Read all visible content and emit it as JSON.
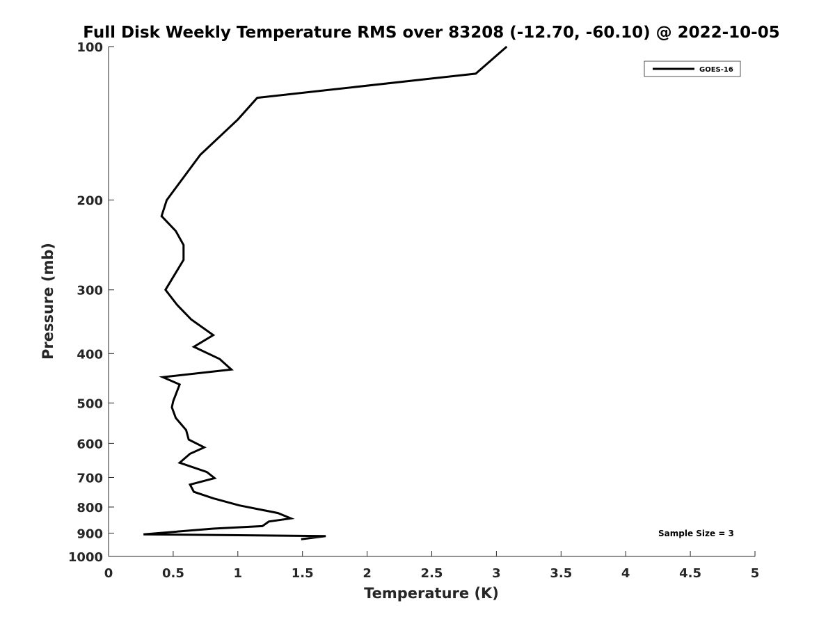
{
  "chart_data": {
    "type": "line",
    "title": "Full Disk Weekly Temperature RMS over 83208 (-12.70, -60.10) @ 2022-10-05",
    "xlabel": "Temperature (K)",
    "ylabel": "Pressure (mb)",
    "xlim": [
      0,
      5
    ],
    "ylim": [
      100,
      1000
    ],
    "y_scale": "log",
    "y_reversed": true,
    "x_ticks": [
      0,
      0.5,
      1,
      1.5,
      2,
      2.5,
      3,
      3.5,
      4,
      4.5,
      5
    ],
    "x_tick_labels": [
      "0",
      "0.5",
      "1",
      "1.5",
      "2",
      "2.5",
      "3",
      "3.5",
      "4",
      "4.5",
      "5"
    ],
    "y_ticks": [
      100,
      200,
      300,
      400,
      500,
      600,
      700,
      800,
      900,
      1000
    ],
    "y_tick_labels": [
      "100",
      "200",
      "300",
      "400",
      "500",
      "600",
      "700",
      "800",
      "900",
      "1000"
    ],
    "grid": false,
    "legend_position": "top-right",
    "series": [
      {
        "name": "GOES-16",
        "color": "#000000",
        "x": [
          3.08,
          2.84,
          1.15,
          1.0,
          0.71,
          0.45,
          0.41,
          0.52,
          0.58,
          0.58,
          0.44,
          0.53,
          0.64,
          0.81,
          0.66,
          0.86,
          0.95,
          0.42,
          0.55,
          0.5,
          0.49,
          0.52,
          0.6,
          0.62,
          0.74,
          0.63,
          0.55,
          0.76,
          0.82,
          0.63,
          0.66,
          0.81,
          1.01,
          1.31,
          1.41,
          1.24,
          1.19,
          0.81,
          0.27,
          1.68,
          1.49
        ],
        "y": [
          100,
          113,
          126,
          139,
          163,
          200,
          215,
          230,
          245,
          262,
          300,
          321,
          343,
          368,
          388,
          410,
          430,
          445,
          460,
          496,
          510,
          535,
          565,
          590,
          611,
          629,
          655,
          683,
          702,
          723,
          747,
          769,
          794,
          822,
          842,
          854,
          872,
          882,
          905,
          912,
          925
        ]
      }
    ],
    "annotations": [
      "Sample Size = 3"
    ]
  }
}
